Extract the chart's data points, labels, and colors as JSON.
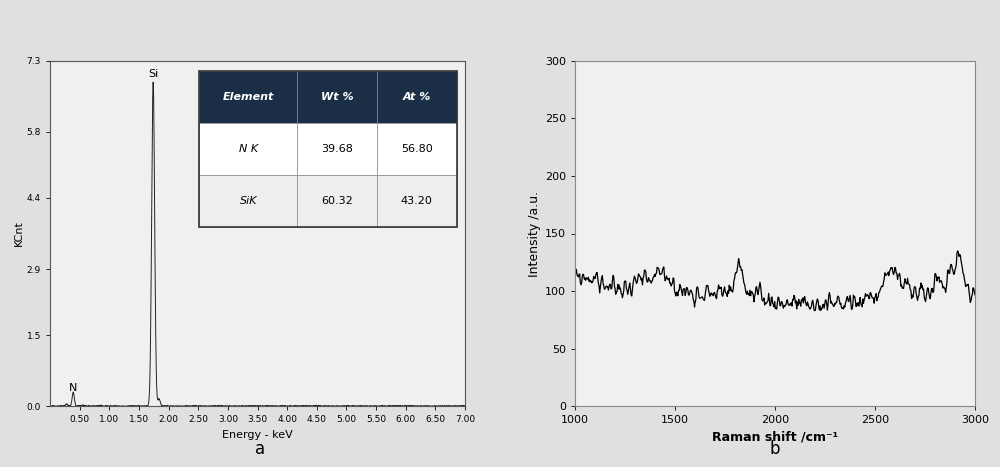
{
  "fig_width": 10.0,
  "fig_height": 4.67,
  "fig_bg": "#e0e0e0",
  "panel_a": {
    "ylabel": "KCnt",
    "xlabel": "Energy - keV",
    "xlim": [
      0,
      7.0
    ],
    "ylim": [
      0.0,
      7.3
    ],
    "yticks": [
      0.0,
      1.5,
      2.9,
      4.4,
      5.8,
      7.3
    ],
    "xticks": [
      0.5,
      1.0,
      1.5,
      2.0,
      2.5,
      3.0,
      3.5,
      4.0,
      4.5,
      5.0,
      5.5,
      6.0,
      6.5,
      7.0
    ],
    "xtick_labels": [
      "0.50",
      "1.00",
      "1.50",
      "2.00",
      "2.50",
      "3.00",
      "3.50",
      "4.00",
      "4.50",
      "5.00",
      "5.50",
      "6.00",
      "6.50",
      "7.00"
    ],
    "N_peak_x": 0.39,
    "N_peak_y": 0.3,
    "Si_peak_x": 1.74,
    "Si_peak_y": 6.85,
    "table": {
      "headers": [
        "Element",
        "Wt %",
        "At %"
      ],
      "rows": [
        [
          "N K",
          "39.68",
          "56.80"
        ],
        [
          "SiK",
          "60.32",
          "43.20"
        ]
      ],
      "header_bg": "#1a2e45",
      "header_fg": "#ffffff",
      "row_bg": "#ffffff",
      "row_fg": "#000000",
      "alt_row_bg": "#eeeeee"
    },
    "label": "a",
    "bg_color": "#f0f0f0"
  },
  "panel_b": {
    "ylabel": "Intensity /a.u.",
    "xlabel": "Raman shift /cm⁻¹",
    "xlim": [
      1000,
      3000
    ],
    "ylim": [
      0,
      300
    ],
    "yticks": [
      0,
      50,
      100,
      150,
      200,
      250,
      300
    ],
    "xticks": [
      1000,
      1500,
      2000,
      2500,
      3000
    ],
    "label": "b",
    "bg_color": "#f0f0f0",
    "line_color": "#000000"
  }
}
